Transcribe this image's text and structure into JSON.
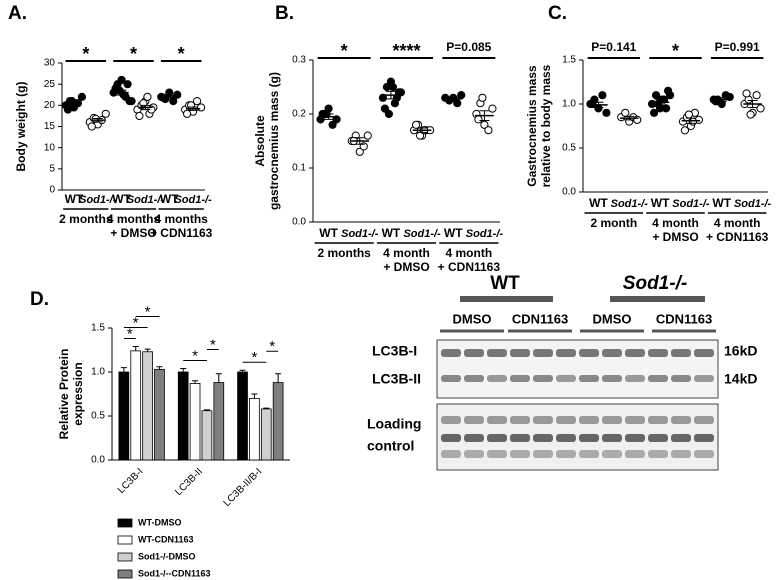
{
  "chart_data": [
    {
      "type": "dot",
      "title": "A.",
      "ylabel": [
        "Body weight (g)"
      ],
      "ylim": [
        0,
        30
      ],
      "yticks": [
        0,
        5,
        10,
        15,
        20,
        25,
        30
      ],
      "categories": [
        "WT",
        "Sod1-/-",
        "WT",
        "Sod1-/-",
        "WT",
        "Sod1-/-"
      ],
      "filled": [
        true,
        false,
        true,
        false,
        true,
        false
      ],
      "groups": [
        [
          "2 months"
        ],
        [
          "4 months",
          "+ DMSO"
        ],
        [
          "4 months",
          "+ CDN1163"
        ]
      ],
      "points": [
        [
          20,
          21,
          19.5,
          20.5,
          22,
          19,
          21,
          20.5
        ],
        [
          16,
          17,
          15.5,
          16.5,
          18,
          15,
          16.8
        ],
        [
          23,
          25,
          26,
          22,
          21,
          24,
          23.5,
          22.5,
          25,
          21
        ],
        [
          19,
          20,
          21,
          18,
          19.5,
          17.5,
          20.5,
          22,
          19
        ],
        [
          22,
          21.5,
          23,
          21,
          22.5,
          21.8
        ],
        [
          19,
          20,
          18.5,
          21,
          19.5,
          18,
          20
        ]
      ],
      "means": [
        20.5,
        16.5,
        23,
        19.5,
        22,
        19.2
      ],
      "errors": [
        0.4,
        0.4,
        0.6,
        0.5,
        0.3,
        0.4
      ],
      "annotations": [
        {
          "text": "*",
          "categories": [
            0,
            1
          ]
        },
        {
          "text": "*",
          "categories": [
            2,
            3
          ]
        },
        {
          "text": "*",
          "categories": [
            4,
            5
          ]
        }
      ]
    },
    {
      "type": "dot",
      "title": "B.",
      "ylabel": [
        "Absolute",
        "gastrocnemius mass (g)"
      ],
      "ylim": [
        0,
        0.3
      ],
      "yticks": [
        {
          "value": 0,
          "label": "0.0"
        },
        0.1,
        0.2,
        0.3
      ],
      "categories": [
        "WT",
        "Sod1-/-",
        "WT",
        "Sod1-/-",
        "WT",
        "Sod1-/-"
      ],
      "filled": [
        true,
        false,
        true,
        false,
        true,
        false
      ],
      "groups": [
        [
          "2 months"
        ],
        [
          "4 month",
          "+ DMSO"
        ],
        [
          "4 month",
          "+ CDN1163"
        ]
      ],
      "points": [
        [
          0.19,
          0.2,
          0.21,
          0.18,
          0.19,
          0.2,
          0.2
        ],
        [
          0.15,
          0.16,
          0.13,
          0.14,
          0.16,
          0.15
        ],
        [
          0.23,
          0.25,
          0.26,
          0.22,
          0.24,
          0.21,
          0.2,
          0.25,
          0.23,
          0.24
        ],
        [
          0.17,
          0.18,
          0.16,
          0.17,
          0.17,
          0.18,
          0.16,
          0.17
        ],
        [
          0.23,
          0.225,
          0.23,
          0.22,
          0.235
        ],
        [
          0.2,
          0.22,
          0.18,
          0.17,
          0.21,
          0.19,
          0.23
        ]
      ],
      "means": [
        0.195,
        0.15,
        0.235,
        0.17,
        0.228,
        0.197
      ],
      "errors": [
        0.005,
        0.006,
        0.007,
        0.004,
        0.003,
        0.009
      ],
      "annotations": [
        {
          "text": "*",
          "categories": [
            0,
            1
          ]
        },
        {
          "text": "****",
          "categories": [
            2,
            3
          ]
        },
        {
          "text": "P=0.085",
          "categories": [
            4,
            5
          ]
        }
      ]
    },
    {
      "type": "dot",
      "title": "C.",
      "ylabel": [
        "Gastrocnemius mass",
        "relative to body mass"
      ],
      "ylim": [
        0,
        1.5
      ],
      "yticks": [
        {
          "value": 0,
          "label": "0.0"
        },
        0.5,
        {
          "value": 1,
          "label": "1.0"
        },
        1.5
      ],
      "categories": [
        "WT",
        "Sod1-/-",
        "WT",
        "Sod1-/-",
        "WT",
        "Sod1-/-"
      ],
      "filled": [
        true,
        false,
        true,
        false,
        true,
        false
      ],
      "groups": [
        [
          "2 month"
        ],
        [
          "4 month",
          "+ DMSO"
        ],
        [
          "4 month",
          "+ CDN1163"
        ]
      ],
      "points": [
        [
          1.0,
          1.05,
          0.95,
          1.1,
          0.9,
          1.0
        ],
        [
          0.85,
          0.9,
          0.8,
          0.85,
          0.82
        ],
        [
          1.0,
          1.1,
          0.95,
          1.05,
          1.15,
          0.9,
          1.0,
          1.05,
          0.95,
          1.1
        ],
        [
          0.8,
          0.85,
          0.75,
          0.9,
          0.82,
          0.7,
          0.88,
          0.8
        ],
        [
          1.05,
          1.05,
          1.0,
          1.1,
          1.08,
          1.03
        ],
        [
          1.0,
          1.05,
          0.9,
          1.1,
          0.95,
          1.12,
          0.88
        ]
      ],
      "means": [
        0.99,
        0.84,
        1.02,
        0.81,
        1.05,
        1.0
      ],
      "errors": [
        0.03,
        0.02,
        0.03,
        0.03,
        0.02,
        0.04
      ],
      "annotations": [
        {
          "text": "P=0.141",
          "categories": [
            0,
            1
          ]
        },
        {
          "text": "*",
          "categories": [
            2,
            3
          ]
        },
        {
          "text": "P=0.991",
          "categories": [
            4,
            5
          ]
        }
      ]
    },
    {
      "type": "bar",
      "title": "D.",
      "ylabel": [
        "Relative Protein",
        "expression"
      ],
      "ylim": [
        0,
        1.5
      ],
      "yticks": [
        {
          "value": 0,
          "label": "0.0"
        },
        0.5,
        {
          "value": 1,
          "label": "1.0"
        },
        1.5
      ],
      "categories": [
        "LC3B-I",
        "LC3B-II",
        "LC3B-II/B-I"
      ],
      "series": [
        {
          "name": "WT-DMSO",
          "color": "#000000",
          "values": [
            1,
            1,
            1
          ],
          "errors": [
            0.05,
            0.04,
            0.02
          ]
        },
        {
          "name": "WT-CDN1163",
          "color": "#ffffff",
          "values": [
            1.24,
            0.87,
            0.7
          ],
          "errors": [
            0.05,
            0.03,
            0.05
          ]
        },
        {
          "name": "Sod1-/-DMSO",
          "color": "#d0d0d0",
          "values": [
            1.23,
            0.56,
            0.58
          ],
          "errors": [
            0.03,
            0.01,
            0.01
          ]
        },
        {
          "name": "Sod1-/--CDN1163",
          "color": "#7f7f7f",
          "values": [
            1.03,
            0.88,
            0.88
          ],
          "errors": [
            0.03,
            0.1,
            0.1
          ]
        }
      ],
      "annotations": [
        {
          "text": "*",
          "category": 0,
          "series": [
            0,
            1
          ]
        },
        {
          "text": "*",
          "category": 0,
          "series": [
            0,
            2
          ]
        },
        {
          "text": "*",
          "category": 0,
          "series": [
            1,
            3
          ]
        },
        {
          "text": "*",
          "category": 1,
          "series": [
            0,
            2
          ]
        },
        {
          "text": "*",
          "category": 1,
          "series": [
            2,
            3
          ]
        },
        {
          "text": "*",
          "category": 2,
          "series": [
            0,
            2
          ]
        },
        {
          "text": "*",
          "category": 2,
          "series": [
            2,
            3
          ]
        }
      ]
    }
  ],
  "blot": {
    "genotypes": [
      "WT",
      "Sod1-/-"
    ],
    "treatments": [
      "DMSO",
      "CDN1163",
      "DMSO",
      "CDN1163"
    ],
    "bands": [
      "LC3B-I",
      "LC3B-II"
    ],
    "sizes": [
      "16kD",
      "14kD"
    ],
    "loading": [
      "Loading",
      "control"
    ]
  }
}
